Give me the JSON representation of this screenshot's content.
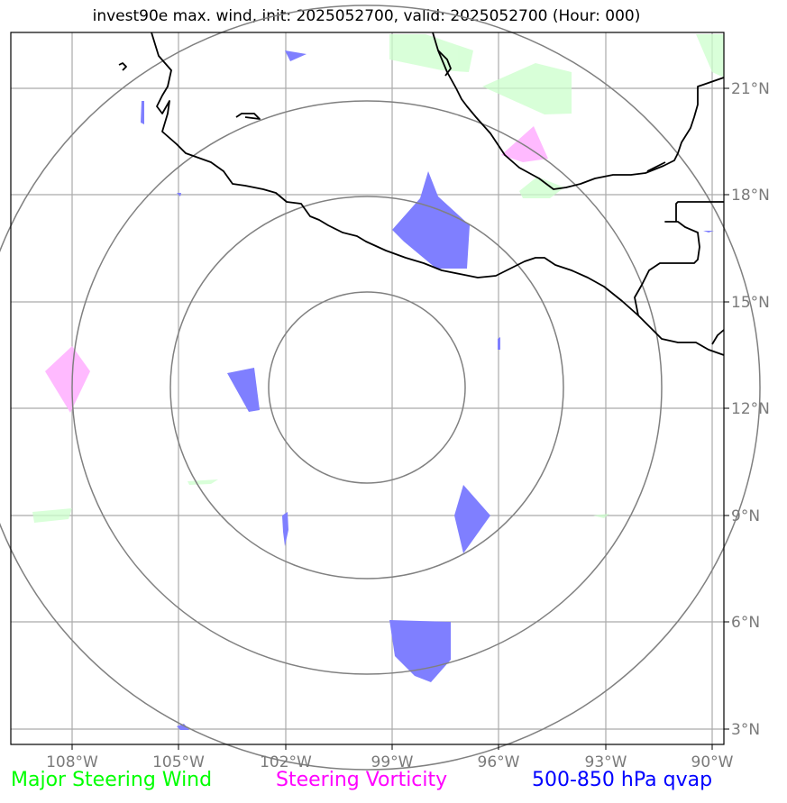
{
  "title": "invest90e max. wind, init: 2025052700, valid: 2025052700 (Hour: 000)",
  "axes": {
    "lon_ticks": [
      "108°W",
      "105°W",
      "102°W",
      "99°W",
      "96°W",
      "93°W",
      "90°W"
    ],
    "lat_ticks": [
      "21°N",
      "18°N",
      "15°N",
      "12°N",
      "9°N",
      "6°N",
      "3°N"
    ]
  },
  "legend": [
    {
      "label": "Major Steering Wind",
      "color": "#00ff00"
    },
    {
      "label": "Steering Vorticity",
      "color": "#ff00ff"
    },
    {
      "label": "500-850 hPa qvap",
      "color": "#0000ff"
    }
  ],
  "colors": {
    "grid": "#aaaaaa",
    "range_rings": "#808080",
    "coastline": "#000000",
    "wind_fill": "#ccffcc",
    "vorticity_fill": "#ffb3ff",
    "qvap_fill": "#7f7fff"
  }
}
